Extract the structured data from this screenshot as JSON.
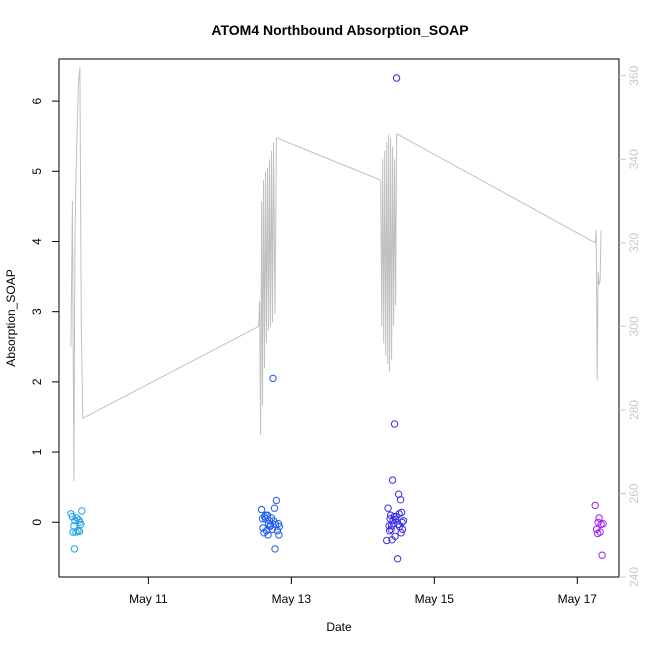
{
  "chart_data": {
    "type": "scatter",
    "title": "ATOM4 Northbound Absorption_SOAP",
    "xlabel": "Date",
    "ylabel": "Absorption_SOAP",
    "x_ticks": [
      {
        "date": "2024-05-11",
        "label": "May 11"
      },
      {
        "date": "2024-05-13",
        "label": "May 13"
      },
      {
        "date": "2024-05-15",
        "label": "May 15"
      },
      {
        "date": "2024-05-17",
        "label": "May 17"
      }
    ],
    "xlim": [
      "2024-05-09T18:00",
      "2024-05-17T14:00"
    ],
    "ylim": [
      -0.78,
      6.6
    ],
    "y_ticks": [
      0,
      1,
      2,
      3,
      4,
      5,
      6
    ],
    "y2lim": [
      240,
      364
    ],
    "y2_ticks": [
      240,
      260,
      280,
      300,
      320,
      340,
      360
    ],
    "grid": false,
    "colors": {
      "point_group_1": "#1fa3e8",
      "point_group_2": "#1f5cf2",
      "point_group_3": "#3a2ee6",
      "point_group_4": "#a020f0",
      "line": "#c0c0c0",
      "right_axis": "#c8c8c8"
    },
    "point_series": [
      {
        "color": "#1fa3e8",
        "points": [
          [
            "2024-05-09T22:00",
            0.12
          ],
          [
            "2024-05-09T22:30",
            0.08
          ],
          [
            "2024-05-09T23:00",
            -0.05
          ],
          [
            "2024-05-09T23:20",
            0.02
          ],
          [
            "2024-05-09T23:40",
            -0.14
          ],
          [
            "2024-05-10T00:00",
            0.06
          ],
          [
            "2024-05-10T00:20",
            -0.12
          ],
          [
            "2024-05-10T00:40",
            0.03
          ],
          [
            "2024-05-10T01:00",
            0.0
          ],
          [
            "2024-05-10T01:20",
            -0.03
          ],
          [
            "2024-05-10T01:40",
            0.16
          ],
          [
            "2024-05-09T23:10",
            -0.38
          ],
          [
            "2024-05-10T00:50",
            -0.13
          ],
          [
            "2024-05-09T22:40",
            -0.14
          ]
        ]
      },
      {
        "color": "#1f5cf2",
        "points": [
          [
            "2024-05-12T14:00",
            0.18
          ],
          [
            "2024-05-12T14:30",
            -0.08
          ],
          [
            "2024-05-12T15:00",
            0.08
          ],
          [
            "2024-05-12T15:20",
            0.05
          ],
          [
            "2024-05-12T15:40",
            -0.12
          ],
          [
            "2024-05-12T16:00",
            0.1
          ],
          [
            "2024-05-12T16:20",
            -0.02
          ],
          [
            "2024-05-12T16:40",
            0.02
          ],
          [
            "2024-05-12T17:00",
            -0.04
          ],
          [
            "2024-05-12T17:20",
            0.06
          ],
          [
            "2024-05-12T17:40",
            -0.1
          ],
          [
            "2024-05-12T18:00",
            0.02
          ],
          [
            "2024-05-12T18:20",
            0.2
          ],
          [
            "2024-05-12T18:40",
            -0.03
          ],
          [
            "2024-05-12T19:00",
            0.31
          ],
          [
            "2024-05-12T19:20",
            -0.12
          ],
          [
            "2024-05-12T19:40",
            -0.02
          ],
          [
            "2024-05-12T20:00",
            -0.06
          ],
          [
            "2024-05-12T14:50",
            -0.15
          ],
          [
            "2024-05-12T16:10",
            -0.18
          ],
          [
            "2024-05-12T17:50",
            2.05
          ],
          [
            "2024-05-12T18:30",
            -0.38
          ],
          [
            "2024-05-12T19:50",
            -0.18
          ],
          [
            "2024-05-12T15:30",
            0.1
          ],
          [
            "2024-05-12T14:20",
            0.05
          ],
          [
            "2024-05-12T16:50",
            -0.06
          ]
        ]
      },
      {
        "color": "#3a2ee6",
        "points": [
          [
            "2024-05-14T08:00",
            -0.26
          ],
          [
            "2024-05-14T08:30",
            0.2
          ],
          [
            "2024-05-14T09:00",
            -0.12
          ],
          [
            "2024-05-14T09:20",
            0.1
          ],
          [
            "2024-05-14T09:40",
            -0.05
          ],
          [
            "2024-05-14T10:00",
            0.6
          ],
          [
            "2024-05-14T10:20",
            -0.02
          ],
          [
            "2024-05-14T10:40",
            1.4
          ],
          [
            "2024-05-14T11:00",
            0.04
          ],
          [
            "2024-05-14T11:20",
            6.33
          ],
          [
            "2024-05-14T11:40",
            -0.52
          ],
          [
            "2024-05-14T12:00",
            0.4
          ],
          [
            "2024-05-14T12:20",
            -0.06
          ],
          [
            "2024-05-14T12:40",
            0.32
          ],
          [
            "2024-05-14T13:00",
            0.14
          ],
          [
            "2024-05-14T13:20",
            -0.1
          ],
          [
            "2024-05-14T13:40",
            0.02
          ],
          [
            "2024-05-14T08:50",
            -0.05
          ],
          [
            "2024-05-14T09:10",
            0.05
          ],
          [
            "2024-05-14T09:50",
            -0.25
          ],
          [
            "2024-05-14T10:10",
            0.03
          ],
          [
            "2024-05-14T10:50",
            -0.2
          ],
          [
            "2024-05-14T11:10",
            0.08
          ],
          [
            "2024-05-14T11:50",
            -0.03
          ],
          [
            "2024-05-14T12:10",
            0.12
          ],
          [
            "2024-05-14T12:50",
            -0.15
          ],
          [
            "2024-05-14T13:10",
            0.0
          ],
          [
            "2024-05-14T10:30",
            0.08
          ],
          [
            "2024-05-14T09:30",
            -0.1
          ]
        ]
      },
      {
        "color": "#a020f0",
        "points": [
          [
            "2024-05-17T06:00",
            0.24
          ],
          [
            "2024-05-17T06:30",
            -0.1
          ],
          [
            "2024-05-17T07:00",
            0.0
          ],
          [
            "2024-05-17T07:20",
            0.06
          ],
          [
            "2024-05-17T07:40",
            -0.14
          ],
          [
            "2024-05-17T08:00",
            -0.03
          ],
          [
            "2024-05-17T08:20",
            -0.47
          ],
          [
            "2024-05-17T08:40",
            -0.02
          ],
          [
            "2024-05-17T06:50",
            -0.16
          ]
        ]
      }
    ],
    "line_series": {
      "color": "#c0c0c0",
      "axis": "right",
      "points": [
        [
          "2024-05-09T22:00",
          295
        ],
        [
          "2024-05-09T22:30",
          330
        ],
        [
          "2024-05-09T23:00",
          263
        ],
        [
          "2024-05-09T23:20",
          320
        ],
        [
          "2024-05-09T23:40",
          335
        ],
        [
          "2024-05-10T00:00",
          345
        ],
        [
          "2024-05-10T00:30",
          358
        ],
        [
          "2024-05-10T01:00",
          362
        ],
        [
          "2024-05-10T01:30",
          300
        ],
        [
          "2024-05-10T02:00",
          278
        ],
        [
          "2024-05-12T13:00",
          300
        ],
        [
          "2024-05-12T13:20",
          306
        ],
        [
          "2024-05-12T13:40",
          274
        ],
        [
          "2024-05-12T14:00",
          330
        ],
        [
          "2024-05-12T14:20",
          281
        ],
        [
          "2024-05-12T14:40",
          335
        ],
        [
          "2024-05-12T15:00",
          290
        ],
        [
          "2024-05-12T15:20",
          337
        ],
        [
          "2024-05-12T15:40",
          296
        ],
        [
          "2024-05-12T16:00",
          338
        ],
        [
          "2024-05-12T16:20",
          299
        ],
        [
          "2024-05-12T16:40",
          340
        ],
        [
          "2024-05-12T17:00",
          300
        ],
        [
          "2024-05-12T17:20",
          342
        ],
        [
          "2024-05-12T17:40",
          301
        ],
        [
          "2024-05-12T18:00",
          344
        ],
        [
          "2024-05-12T18:30",
          303
        ],
        [
          "2024-05-12T19:00",
          345
        ],
        [
          "2024-05-12T19:30",
          345
        ],
        [
          "2024-05-14T06:00",
          335
        ],
        [
          "2024-05-14T06:20",
          300
        ],
        [
          "2024-05-14T06:40",
          340
        ],
        [
          "2024-05-14T07:00",
          296
        ],
        [
          "2024-05-14T07:20",
          342
        ],
        [
          "2024-05-14T07:40",
          293
        ],
        [
          "2024-05-14T08:00",
          344
        ],
        [
          "2024-05-14T08:20",
          291
        ],
        [
          "2024-05-14T08:40",
          346
        ],
        [
          "2024-05-14T09:00",
          289
        ],
        [
          "2024-05-14T09:20",
          345
        ],
        [
          "2024-05-14T09:40",
          292
        ],
        [
          "2024-05-14T10:00",
          343
        ],
        [
          "2024-05-14T10:20",
          300
        ],
        [
          "2024-05-14T10:40",
          340
        ],
        [
          "2024-05-14T11:00",
          305
        ],
        [
          "2024-05-14T11:20",
          346
        ],
        [
          "2024-05-14T11:40",
          346
        ],
        [
          "2024-05-17T06:00",
          320
        ],
        [
          "2024-05-17T06:20",
          323
        ],
        [
          "2024-05-17T06:40",
          287
        ],
        [
          "2024-05-17T07:00",
          313
        ],
        [
          "2024-05-17T07:20",
          310
        ],
        [
          "2024-05-17T07:40",
          311
        ],
        [
          "2024-05-17T08:00",
          323
        ]
      ]
    }
  }
}
